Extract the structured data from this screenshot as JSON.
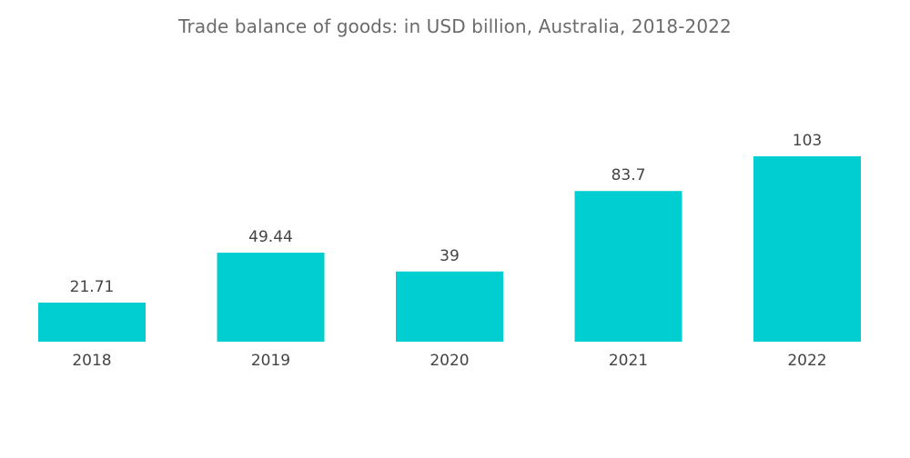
{
  "chart_data": {
    "type": "bar",
    "title": "Trade balance of goods: in USD billion, Australia, 2018-2022",
    "xlabel": "",
    "ylabel": "",
    "categories": [
      "2018",
      "2019",
      "2020",
      "2021",
      "2022"
    ],
    "values": [
      21.71,
      49.44,
      39,
      83.7,
      103
    ],
    "value_labels": [
      "21.71",
      "49.44",
      "39",
      "83.7",
      "103"
    ],
    "ylim": [
      0,
      103
    ],
    "grid": false,
    "legend": "none",
    "colors": {
      "bar": "#00ced1",
      "text": "#444444",
      "title": "#6b6b6b"
    }
  }
}
